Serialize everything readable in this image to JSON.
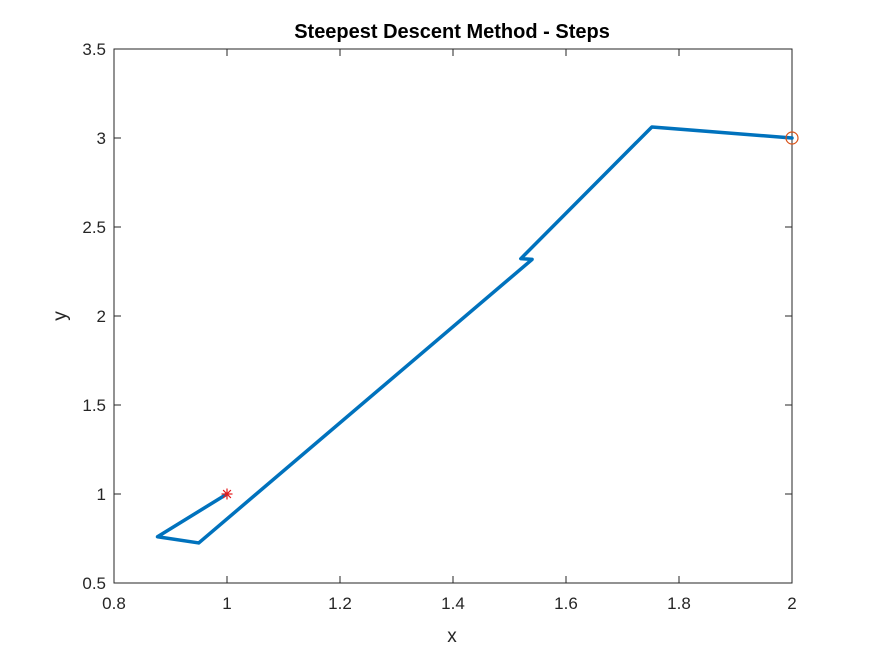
{
  "chart_data": {
    "type": "line",
    "title": "Steepest Descent Method - Steps",
    "xlabel": "x",
    "ylabel": "y",
    "xlim": [
      0.8,
      2
    ],
    "ylim": [
      0.5,
      3.5
    ],
    "xticks": [
      "0.8",
      "1",
      "1.2",
      "1.4",
      "1.6",
      "1.8",
      "2"
    ],
    "yticks": [
      "0.5",
      "1",
      "1.5",
      "2",
      "2.5",
      "3",
      "3.5"
    ],
    "grid": false,
    "series": [
      {
        "color": "#0072BD",
        "x": [
          2.0,
          1.752,
          1.52,
          1.54,
          0.95,
          0.877,
          1.0
        ],
        "y": [
          3.0,
          3.062,
          2.322,
          2.318,
          0.725,
          0.76,
          1.0
        ]
      }
    ],
    "markers": [
      {
        "kind": "circle",
        "color": "#D95319",
        "x": 2.0,
        "y": 3.0
      },
      {
        "kind": "asterisk",
        "color": "#E41A1C",
        "x": 1.0,
        "y": 1.0
      }
    ]
  }
}
